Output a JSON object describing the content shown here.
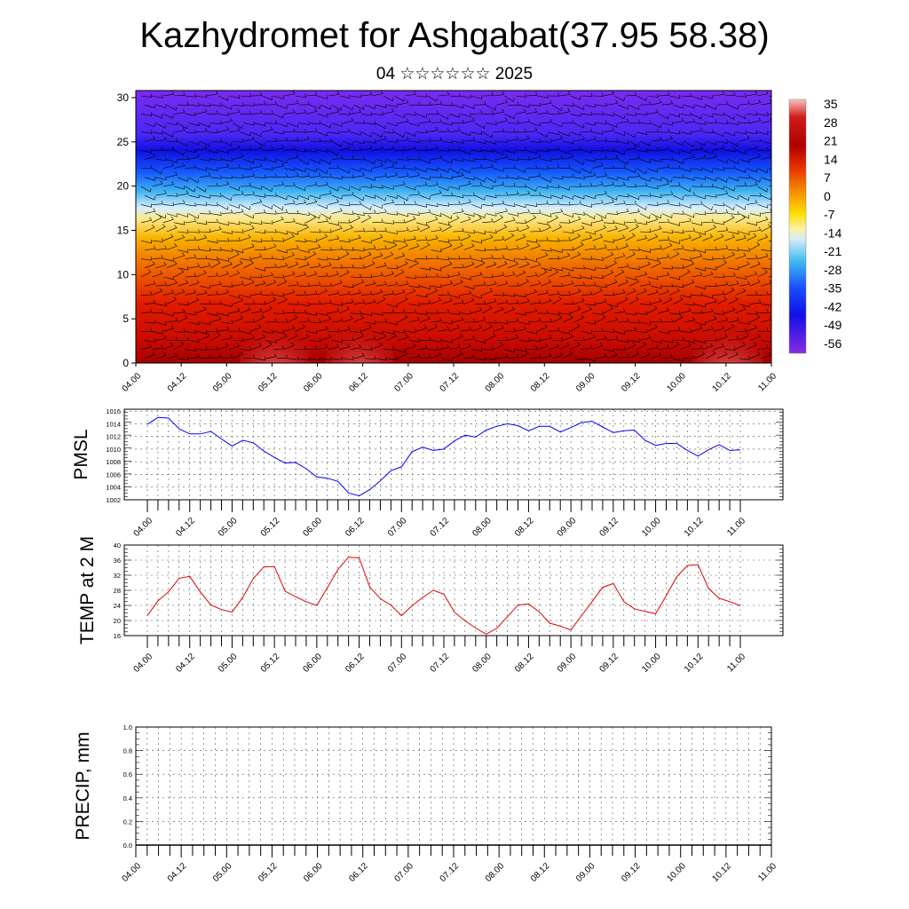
{
  "page": {
    "title": "Kazhydromet for Ashgabat(37.95 58.38)",
    "subtitle": "04 ☆☆☆☆☆☆ 2025"
  },
  "chart_data": [
    {
      "type": "heatmap",
      "name": "cross-section",
      "x_ticks": [
        "04.00",
        "04.12",
        "05.00",
        "05.12",
        "06.00",
        "06.12",
        "07.00",
        "07.12",
        "08.00",
        "08.12",
        "09.00",
        "09.12",
        "10.00",
        "10.12",
        "11.00"
      ],
      "y_ticks": [
        0,
        5,
        10,
        15,
        20,
        25,
        30
      ],
      "ylim": [
        0,
        30.8
      ],
      "colorbar": {
        "labels": [
          "35",
          "28",
          "21",
          "14",
          "7",
          "0",
          "-7",
          "-14",
          "-21",
          "-28",
          "-35",
          "-42",
          "-49",
          "-56"
        ]
      },
      "overlay": "wind barbs"
    },
    {
      "type": "line",
      "ylabel": "PMSL",
      "x_ticks": [
        "04.00",
        "04.12",
        "05.00",
        "05.12",
        "06.00",
        "06.12",
        "07.00",
        "07.12",
        "08.00",
        "08.12",
        "09.00",
        "09.12",
        "10.00",
        "10.12",
        "11.00"
      ],
      "y_ticks": [
        1002,
        1004,
        1006,
        1008,
        1010,
        1012,
        1014,
        1016
      ],
      "ylim": [
        1002,
        1016.3
      ],
      "line_color": "#0000ff",
      "values": [
        1013.9,
        1015.0,
        1014.9,
        1013.2,
        1012.4,
        1012.4,
        1012.8,
        1011.6,
        1010.5,
        1011.4,
        1011.0,
        1009.7,
        1008.7,
        1007.8,
        1007.9,
        1006.9,
        1005.6,
        1005.4,
        1004.9,
        1003.1,
        1002.6,
        1003.6,
        1005.0,
        1006.6,
        1007.2,
        1009.6,
        1010.3,
        1009.8,
        1010.0,
        1011.3,
        1012.2,
        1011.9,
        1013.0,
        1013.6,
        1014.0,
        1013.7,
        1012.9,
        1013.6,
        1013.6,
        1012.7,
        1013.4,
        1014.2,
        1014.4,
        1013.5,
        1012.6,
        1012.9,
        1013.0,
        1011.4,
        1010.6,
        1010.9,
        1010.9,
        1009.8,
        1008.9,
        1009.9,
        1010.7,
        1009.8,
        1009.9
      ]
    },
    {
      "type": "line",
      "ylabel": "TEMP at 2 M",
      "x_ticks": [
        "04.00",
        "04.12",
        "05.00",
        "05.12",
        "06.00",
        "06.12",
        "07.00",
        "07.12",
        "08.00",
        "08.12",
        "09.00",
        "09.12",
        "10.00",
        "10.12",
        "11.00"
      ],
      "y_ticks": [
        16,
        20,
        24,
        28,
        32,
        36,
        40
      ],
      "ylim": [
        16,
        40
      ],
      "line_color": "#e00000",
      "values": [
        21.3,
        25.2,
        27.6,
        31.2,
        31.7,
        27.6,
        24.1,
        22.9,
        22.2,
        26.1,
        31.1,
        34.2,
        34.3,
        27.8,
        26.3,
        25.0,
        24.0,
        28.7,
        33.5,
        36.8,
        36.6,
        28.9,
        25.8,
        24.1,
        21.3,
        23.9,
        26.1,
        28.0,
        27.0,
        22.2,
        19.9,
        18.0,
        16.4,
        17.9,
        21.0,
        24.1,
        24.4,
        22.3,
        19.3,
        18.5,
        17.5,
        21.3,
        25.0,
        28.8,
        29.8,
        25.0,
        23.1,
        22.4,
        21.8,
        26.6,
        31.6,
        34.6,
        34.8,
        28.5,
        25.9,
        25.0,
        23.9
      ]
    },
    {
      "type": "line",
      "ylabel": "PRECIP, mm",
      "x_ticks": [
        "04.00",
        "04.12",
        "05.00",
        "05.12",
        "06.00",
        "06.12",
        "07.00",
        "07.12",
        "08.00",
        "08.12",
        "09.00",
        "09.12",
        "10.00",
        "10.12",
        "11.00"
      ],
      "y_ticks": [
        "0.0",
        "0.2",
        "0.4",
        "0.6",
        "0.8",
        "1.0"
      ],
      "ylim": [
        0,
        1
      ],
      "values": [
        0,
        0,
        0,
        0,
        0,
        0,
        0,
        0,
        0,
        0,
        0,
        0,
        0,
        0,
        0,
        0,
        0,
        0,
        0,
        0,
        0,
        0,
        0,
        0,
        0,
        0,
        0,
        0,
        0,
        0,
        0,
        0,
        0,
        0,
        0,
        0,
        0,
        0,
        0,
        0,
        0,
        0,
        0,
        0,
        0,
        0,
        0,
        0,
        0,
        0,
        0,
        0,
        0,
        0,
        0,
        0,
        0
      ]
    }
  ]
}
